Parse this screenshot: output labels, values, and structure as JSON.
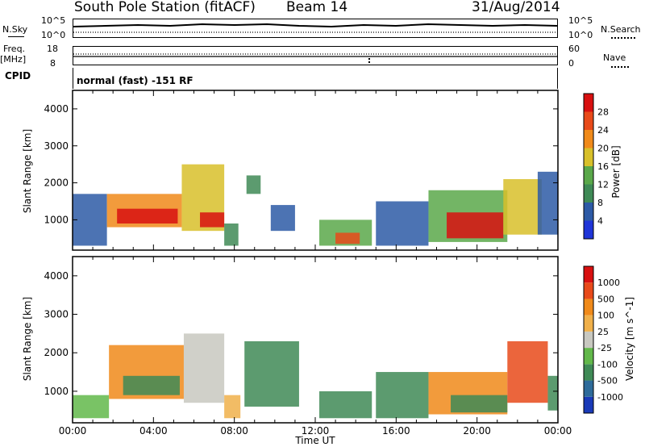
{
  "header": {
    "station": "South Pole Station (fitACF)",
    "beam": "Beam 14",
    "date": "31/Aug/2014"
  },
  "noise_panel": {
    "left_label": "N.Sky",
    "left_top_tick": "10^5",
    "left_bottom_tick": "10^0",
    "right_top_tick": "10^5",
    "right_bottom_tick": "10^0",
    "right_label": "N.Search",
    "right_legend_style": "dotted"
  },
  "freq_panel": {
    "left_label_line1": "Freq.",
    "left_label_line2": "[MHz]",
    "left_top_tick": "18",
    "left_bottom_tick": "8",
    "right_top_tick": "60",
    "right_bottom_tick": "0",
    "right_label": "Nave",
    "right_legend_style": "dotted"
  },
  "cpid_panel": {
    "label": "CPID",
    "mode": "normal (fast) -151 RF"
  },
  "time_axis": {
    "label": "Time UT",
    "ticks": [
      "00:00",
      "04:00",
      "08:00",
      "12:00",
      "16:00",
      "20:00",
      "00:00"
    ],
    "range_hours": [
      0,
      24
    ]
  },
  "chart_data": [
    {
      "type": "heatmap",
      "name": "power",
      "ylabel": "Slant Range [km]",
      "yticks": [
        "1000",
        "2000",
        "3000",
        "4000"
      ],
      "ylim": [
        180,
        4500
      ],
      "xlim_hours": [
        0,
        24
      ],
      "colorbar": {
        "label": "Power [dB]",
        "tick_labels": [
          "4",
          "8",
          "12",
          "16",
          "20",
          "24",
          "28"
        ],
        "colors": [
          "#1f35d8",
          "#2d5aa6",
          "#3f8a56",
          "#5aa84a",
          "#d8c02a",
          "#f08a1a",
          "#e84a1a",
          "#d81010"
        ]
      },
      "regions": [
        {
          "t0": 0.0,
          "t1": 1.7,
          "r0": 300,
          "r1": 1700,
          "level": 1
        },
        {
          "t0": 1.7,
          "t1": 5.4,
          "r0": 800,
          "r1": 1700,
          "level": 5
        },
        {
          "t0": 2.2,
          "t1": 5.2,
          "r0": 900,
          "r1": 1300,
          "level": 7
        },
        {
          "t0": 5.4,
          "t1": 7.5,
          "r0": 700,
          "r1": 2500,
          "level": 4
        },
        {
          "t0": 6.3,
          "t1": 7.5,
          "r0": 800,
          "r1": 1200,
          "level": 7
        },
        {
          "t0": 7.5,
          "t1": 8.2,
          "r0": 300,
          "r1": 900,
          "level": 2
        },
        {
          "t0": 8.6,
          "t1": 9.3,
          "r0": 1700,
          "r1": 2200,
          "level": 2
        },
        {
          "t0": 9.8,
          "t1": 11.0,
          "r0": 700,
          "r1": 1400,
          "level": 1
        },
        {
          "t0": 12.2,
          "t1": 14.8,
          "r0": 300,
          "r1": 1000,
          "level": 3
        },
        {
          "t0": 13.0,
          "t1": 14.2,
          "r0": 350,
          "r1": 650,
          "level": 6
        },
        {
          "t0": 15.0,
          "t1": 17.6,
          "r0": 300,
          "r1": 1500,
          "level": 1
        },
        {
          "t0": 17.6,
          "t1": 21.5,
          "r0": 400,
          "r1": 1800,
          "level": 3
        },
        {
          "t0": 18.5,
          "t1": 21.3,
          "r0": 500,
          "r1": 1200,
          "level": 7
        },
        {
          "t0": 21.3,
          "t1": 23.2,
          "r0": 600,
          "r1": 2100,
          "level": 4
        },
        {
          "t0": 23.0,
          "t1": 24.0,
          "r0": 600,
          "r1": 2300,
          "level": 1
        }
      ]
    },
    {
      "type": "heatmap",
      "name": "velocity",
      "ylabel": "Slant Range [km]",
      "yticks": [
        "1000",
        "2000",
        "3000",
        "4000"
      ],
      "ylim": [
        180,
        4500
      ],
      "xlim_hours": [
        0,
        24
      ],
      "colorbar": {
        "label": "Velocity [m s^-1]",
        "tick_labels": [
          "1000",
          "500",
          "100",
          "25",
          "-25",
          "-100",
          "-500",
          "-1000"
        ],
        "colors": [
          "#1a3ab8",
          "#2e6b9a",
          "#3f8a56",
          "#62b84a",
          "#c8c8c0",
          "#f0b04a",
          "#f08a1a",
          "#e84a1a",
          "#d81010"
        ]
      },
      "regions": [
        {
          "t0": 0.0,
          "t1": 1.8,
          "r0": 300,
          "r1": 900,
          "level": 3
        },
        {
          "t0": 1.8,
          "t1": 5.5,
          "r0": 800,
          "r1": 2200,
          "level": 6
        },
        {
          "t0": 2.5,
          "t1": 5.3,
          "r0": 900,
          "r1": 1400,
          "level": 2
        },
        {
          "t0": 5.5,
          "t1": 7.5,
          "r0": 700,
          "r1": 2500,
          "level": 4
        },
        {
          "t0": 7.5,
          "t1": 8.3,
          "r0": 300,
          "r1": 900,
          "level": 5
        },
        {
          "t0": 8.5,
          "t1": 11.2,
          "r0": 600,
          "r1": 2300,
          "level": 2
        },
        {
          "t0": 12.2,
          "t1": 14.8,
          "r0": 300,
          "r1": 1000,
          "level": 2
        },
        {
          "t0": 15.0,
          "t1": 17.6,
          "r0": 300,
          "r1": 1500,
          "level": 2
        },
        {
          "t0": 17.6,
          "t1": 21.5,
          "r0": 400,
          "r1": 1500,
          "level": 6
        },
        {
          "t0": 18.7,
          "t1": 21.5,
          "r0": 450,
          "r1": 900,
          "level": 2
        },
        {
          "t0": 21.5,
          "t1": 23.5,
          "r0": 700,
          "r1": 2300,
          "level": 7
        },
        {
          "t0": 23.5,
          "t1": 24.0,
          "r0": 500,
          "r1": 1400,
          "level": 2
        }
      ]
    }
  ]
}
